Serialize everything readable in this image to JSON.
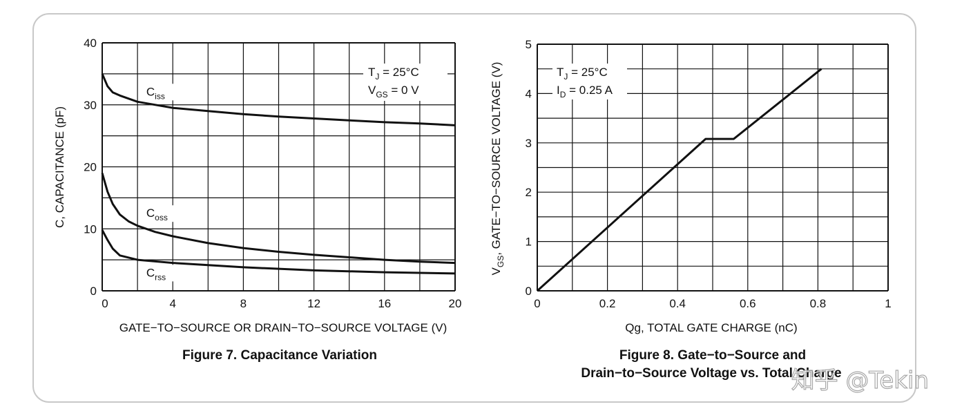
{
  "watermark": "知乎 @Tekin",
  "chart_data": [
    {
      "type": "line",
      "caption": "Figure 7. Capacitance Variation",
      "xlabel": "GATE−TO−SOURCE OR DRAIN−TO−SOURCE VOLTAGE (V)",
      "ylabel": "C, CAPACITANCE (pF)",
      "xlim": [
        0,
        20
      ],
      "ylim": [
        0,
        40
      ],
      "xticks": [
        "0",
        "4",
        "8",
        "12",
        "16",
        "20"
      ],
      "yticks": [
        "0",
        "10",
        "20",
        "30",
        "40"
      ],
      "conditions": [
        {
          "main": "T",
          "sub": "J",
          "rest": " = 25°C"
        },
        {
          "main": "V",
          "sub": "GS",
          "rest": " = 0 V"
        }
      ],
      "series": [
        {
          "name": "Ciss",
          "main": "C",
          "sub": "iss",
          "x": [
            0,
            0.3,
            0.6,
            1,
            2,
            4,
            6,
            8,
            10,
            12,
            14,
            16,
            18,
            20
          ],
          "y": [
            35,
            33,
            32,
            31.5,
            30.5,
            29.5,
            29,
            28.5,
            28.1,
            27.8,
            27.5,
            27.2,
            27.0,
            26.7
          ]
        },
        {
          "name": "Coss",
          "main": "C",
          "sub": "oss",
          "x": [
            0,
            0.3,
            0.6,
            1,
            1.5,
            2,
            3,
            4,
            6,
            8,
            10,
            12,
            14,
            16,
            18,
            20
          ],
          "y": [
            19,
            16,
            14,
            12.3,
            11.2,
            10.5,
            9.5,
            8.8,
            7.7,
            6.9,
            6.3,
            5.8,
            5.4,
            5.0,
            4.7,
            4.5
          ]
        },
        {
          "name": "Crss",
          "main": "C",
          "sub": "rss",
          "x": [
            0,
            0.3,
            0.6,
            1,
            2,
            4,
            8,
            12,
            16,
            20
          ],
          "y": [
            9.8,
            8.2,
            6.8,
            5.7,
            5.0,
            4.5,
            3.8,
            3.3,
            3.0,
            2.8
          ]
        }
      ]
    },
    {
      "type": "line",
      "caption": [
        "Figure 8. Gate−to−Source and",
        "Drain−to−Source Voltage vs. Total Charge"
      ],
      "xlabel": "Qg, TOTAL GATE CHARGE (nC)",
      "ylabel_main": "V",
      "ylabel_sub": "GS",
      "ylabel_rest": ", GATE−TO−SOURCE VOLTAGE (V)",
      "xlim": [
        0,
        1
      ],
      "ylim": [
        0,
        5
      ],
      "xticks": [
        "0",
        "0.2",
        "0.4",
        "0.6",
        "0.8",
        "1"
      ],
      "yticks": [
        "0",
        "1",
        "2",
        "3",
        "4",
        "5"
      ],
      "conditions": [
        {
          "main": "T",
          "sub": "J",
          "rest": " = 25°C"
        },
        {
          "main": "I",
          "sub": "D",
          "rest": " = 0.25 A"
        }
      ],
      "series": [
        {
          "name": "VGS",
          "x": [
            0,
            0.48,
            0.56,
            0.81
          ],
          "y": [
            0,
            3.08,
            3.08,
            4.5
          ]
        }
      ]
    }
  ]
}
